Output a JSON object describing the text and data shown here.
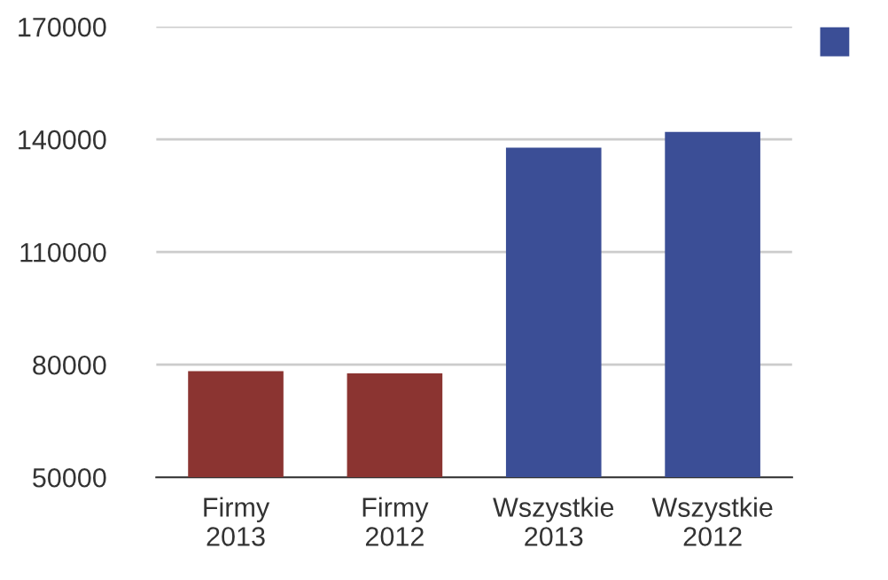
{
  "chart_data": {
    "type": "bar",
    "categories": [
      "Firmy\n2013",
      "Firmy\n2012",
      "Wszystkie\n2013",
      "Wszystkie\n2012"
    ],
    "values": [
      78300,
      77700,
      137800,
      142000
    ],
    "colors": [
      "#8b3431",
      "#8b3431",
      "#3b4e96",
      "#3b4e96"
    ],
    "ylim": [
      50000,
      170000
    ],
    "yticks": [
      50000,
      80000,
      110000,
      140000,
      170000
    ],
    "grid": "y"
  }
}
